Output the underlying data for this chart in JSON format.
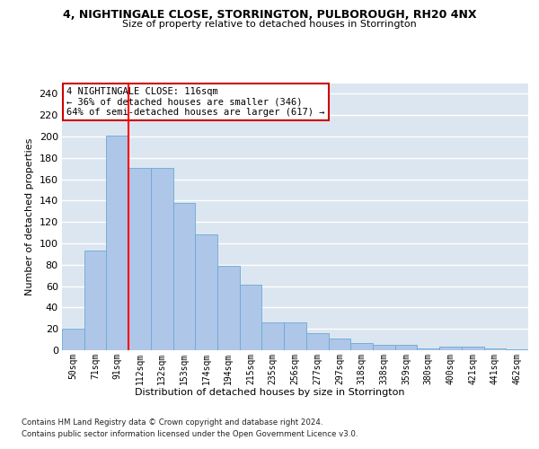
{
  "title": "4, NIGHTINGALE CLOSE, STORRINGTON, PULBOROUGH, RH20 4NX",
  "subtitle": "Size of property relative to detached houses in Storrington",
  "xlabel": "Distribution of detached houses by size in Storrington",
  "ylabel": "Number of detached properties",
  "categories": [
    "50sqm",
    "71sqm",
    "91sqm",
    "112sqm",
    "132sqm",
    "153sqm",
    "174sqm",
    "194sqm",
    "215sqm",
    "235sqm",
    "256sqm",
    "277sqm",
    "297sqm",
    "318sqm",
    "338sqm",
    "359sqm",
    "380sqm",
    "400sqm",
    "421sqm",
    "441sqm",
    "462sqm"
  ],
  "values": [
    20,
    93,
    201,
    171,
    171,
    138,
    108,
    79,
    61,
    26,
    26,
    16,
    11,
    7,
    5,
    5,
    2,
    3,
    3,
    2,
    1
  ],
  "bar_color": "#aec6e8",
  "bar_edge_color": "#6aaad4",
  "background_color": "#dce6f1",
  "grid_color": "#ffffff",
  "red_line_index": 3,
  "annotation_text": "4 NIGHTINGALE CLOSE: 116sqm\n← 36% of detached houses are smaller (346)\n64% of semi-detached houses are larger (617) →",
  "annotation_box_color": "#ffffff",
  "annotation_box_edge": "#cc0000",
  "footer1": "Contains HM Land Registry data © Crown copyright and database right 2024.",
  "footer2": "Contains public sector information licensed under the Open Government Licence v3.0.",
  "ylim": [
    0,
    250
  ],
  "yticks": [
    0,
    20,
    40,
    60,
    80,
    100,
    120,
    140,
    160,
    180,
    200,
    220,
    240
  ]
}
